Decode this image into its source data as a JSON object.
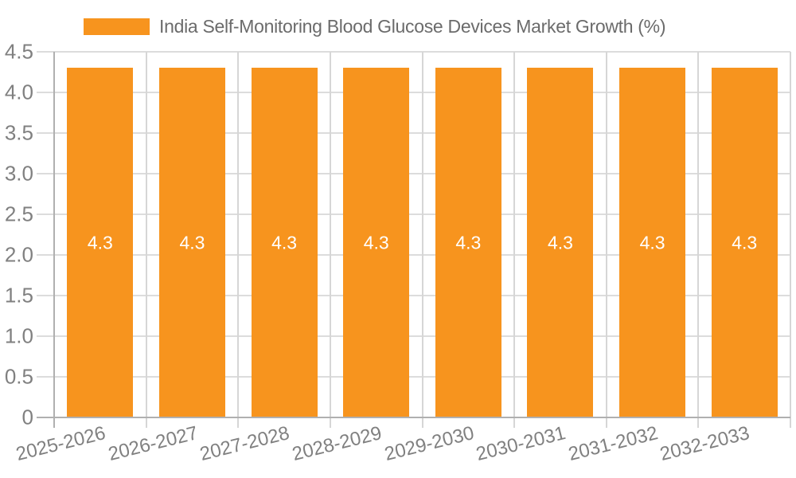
{
  "chart_data": {
    "type": "bar",
    "title": "India Self-Monitoring Blood Glucose Devices Market Growth (%)",
    "categories": [
      "2025-2026",
      "2026-2027",
      "2027-2028",
      "2028-2029",
      "2029-2030",
      "2030-2031",
      "2031-2032",
      "2032-2033"
    ],
    "values": [
      4.3,
      4.3,
      4.3,
      4.3,
      4.3,
      4.3,
      4.3,
      4.3
    ],
    "value_labels": [
      "4.3",
      "4.3",
      "4.3",
      "4.3",
      "4.3",
      "4.3",
      "4.3",
      "4.3"
    ],
    "xlabel": "",
    "ylabel": "",
    "ylim": [
      0,
      4.5
    ],
    "ytick_labels": [
      "0",
      "0.5",
      "1.0",
      "1.5",
      "2.0",
      "2.5",
      "3.0",
      "3.5",
      "4.0",
      "4.5"
    ],
    "grid": true,
    "legend_position": "top",
    "legend": {
      "label": "India Self-Monitoring Blood Glucose Devices Market Growth (%)"
    },
    "colors": {
      "bar": "#F7941E",
      "bar_label": "#ffffff",
      "gridline": "#dcdcdc",
      "axis": "#b0b0b0",
      "tick_text": "#808080",
      "title_text": "#6b6b6b",
      "background": "#ffffff"
    }
  }
}
